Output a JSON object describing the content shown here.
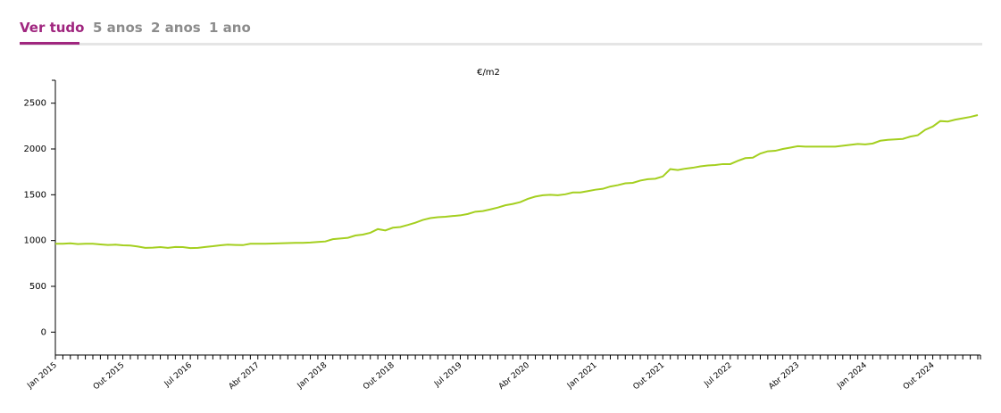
{
  "tabs": [
    "Ver tudo",
    "5 anos",
    "2 anos",
    "1 ano"
  ],
  "chart_data": {
    "type": "line",
    "title": "€/m2",
    "categories": [
      "Jan 2015",
      null,
      null,
      null,
      null,
      null,
      null,
      null,
      null,
      "Out 2015",
      null,
      null,
      null,
      null,
      null,
      null,
      null,
      null,
      "Jul 2016",
      null,
      null,
      null,
      null,
      null,
      null,
      null,
      null,
      "Abr 2017",
      null,
      null,
      null,
      null,
      null,
      null,
      null,
      null,
      "Jan 2018",
      null,
      null,
      null,
      null,
      null,
      null,
      null,
      null,
      "Out 2018",
      null,
      null,
      null,
      null,
      null,
      null,
      null,
      null,
      "Jul 2019",
      null,
      null,
      null,
      null,
      null,
      null,
      null,
      null,
      "Abr 2020",
      null,
      null,
      null,
      null,
      null,
      null,
      null,
      null,
      "Jan 2021",
      null,
      null,
      null,
      null,
      null,
      null,
      null,
      null,
      "Out 2021",
      null,
      null,
      null,
      null,
      null,
      null,
      null,
      null,
      "Jul 2022",
      null,
      null,
      null,
      null,
      null,
      null,
      null,
      null,
      "Abr 2023",
      null,
      null,
      null,
      null,
      null,
      null,
      null,
      null,
      "Jan 2024",
      null,
      null,
      null,
      null,
      null,
      null,
      null,
      null,
      "Out 2024",
      null,
      null,
      null,
      null,
      null,
      null
    ],
    "series": [
      {
        "name": "€/m2",
        "color": "#a4cf1f",
        "values": [
          965,
          965,
          970,
          962,
          965,
          965,
          958,
          952,
          955,
          948,
          945,
          935,
          920,
          922,
          928,
          920,
          930,
          928,
          918,
          920,
          930,
          938,
          948,
          955,
          952,
          950,
          965,
          965,
          965,
          968,
          970,
          972,
          975,
          975,
          978,
          985,
          990,
          1015,
          1022,
          1030,
          1055,
          1065,
          1085,
          1125,
          1110,
          1140,
          1148,
          1170,
          1195,
          1225,
          1245,
          1255,
          1260,
          1268,
          1275,
          1290,
          1315,
          1322,
          1340,
          1360,
          1385,
          1400,
          1420,
          1455,
          1480,
          1495,
          1500,
          1495,
          1505,
          1525,
          1525,
          1540,
          1555,
          1565,
          1590,
          1605,
          1625,
          1630,
          1655,
          1670,
          1675,
          1700,
          1780,
          1770,
          1785,
          1795,
          1810,
          1820,
          1825,
          1835,
          1835,
          1870,
          1900,
          1905,
          1950,
          1975,
          1980,
          2000,
          2015,
          2030,
          2025,
          2025,
          2025,
          2025,
          2025,
          2035,
          2045,
          2055,
          2050,
          2060,
          2090,
          2100,
          2105,
          2110,
          2135,
          2150,
          2210,
          2245,
          2305,
          2300,
          2320,
          2335,
          2350,
          2370
        ]
      }
    ],
    "ylim": [
      -250,
      2750
    ],
    "yticks": [
      0,
      500,
      1000,
      1500,
      2000,
      2500
    ]
  }
}
